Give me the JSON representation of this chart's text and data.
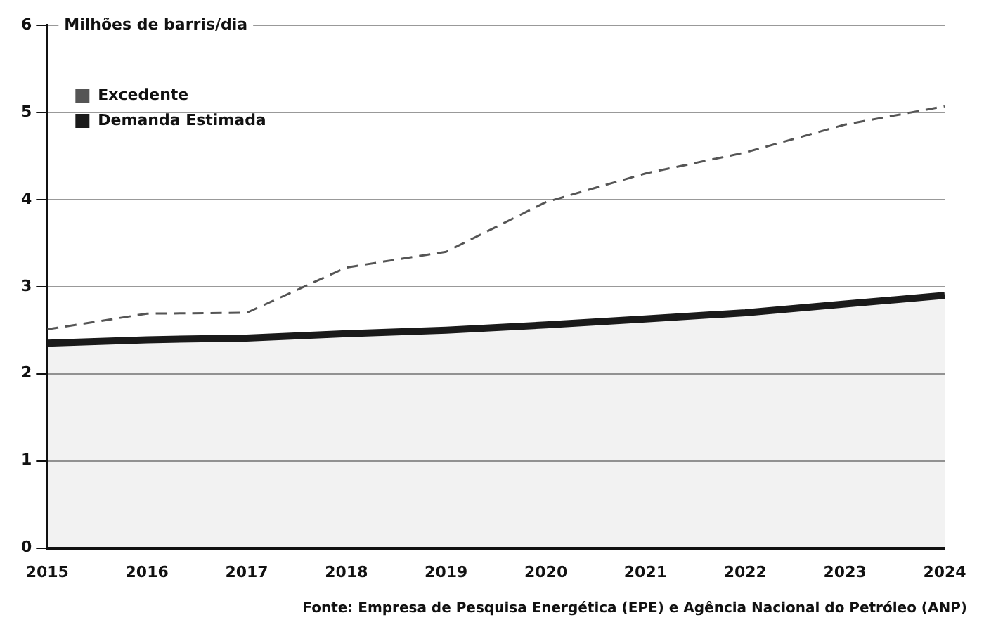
{
  "chart_data": {
    "type": "line",
    "ylabel": "Milhões de barris/dia",
    "x": [
      2015,
      2016,
      2017,
      2018,
      2019,
      2020,
      2021,
      2022,
      2023,
      2024
    ],
    "series": [
      {
        "name": "Excedente",
        "color": "#555555",
        "line_style": "dashed",
        "values": [
          2.51,
          2.69,
          2.7,
          3.22,
          3.4,
          3.97,
          4.3,
          4.54,
          4.86,
          5.07
        ]
      },
      {
        "name": "Demanda Estimada",
        "type": "area",
        "color": "#1a1a1a",
        "line_style": "solid",
        "values": [
          2.35,
          2.39,
          2.41,
          2.46,
          2.5,
          2.56,
          2.63,
          2.7,
          2.8,
          2.9
        ]
      }
    ],
    "xlim": [
      2015,
      2024
    ],
    "xticks": [
      2015,
      2016,
      2017,
      2018,
      2019,
      2020,
      2021,
      2022,
      2023,
      2024
    ],
    "ylim": [
      0,
      6
    ],
    "yticks": [
      0,
      1,
      2,
      3,
      4,
      5,
      6
    ],
    "grid": "y",
    "legend": "top left",
    "marker": "none",
    "annotations": [
      "Fonte: Empresa de Pesquisa Energética (EPE) e Agência Nacional do Petróleo (ANP)"
    ]
  }
}
